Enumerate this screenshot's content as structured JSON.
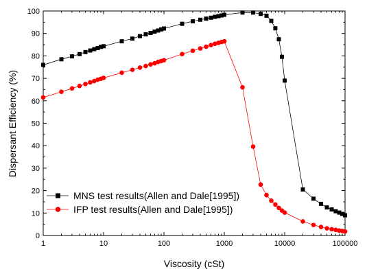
{
  "chart_data": {
    "type": "scatter",
    "title": "",
    "xlabel": "Viscosity (cSt)",
    "ylabel": "Dispersant Efficiency (%)",
    "xscale": "log",
    "xlim": [
      1,
      100000
    ],
    "ylim": [
      0,
      100
    ],
    "x_ticks": [
      1,
      10,
      100,
      1000,
      10000,
      100000
    ],
    "x_tick_labels": [
      "1",
      "10",
      "100",
      "1000",
      "10000",
      "100000"
    ],
    "y_ticks": [
      0,
      10,
      20,
      30,
      40,
      50,
      60,
      70,
      80,
      90,
      100
    ],
    "y_tick_labels": [
      "0",
      "10",
      "20",
      "30",
      "40",
      "50",
      "60",
      "70",
      "80",
      "90",
      "100"
    ],
    "grid": false,
    "legend_position": "bottom-left",
    "series": [
      {
        "name": "MNS test results(Allen and Dale[1995])",
        "color": "#000000",
        "marker": "square",
        "x": [
          1,
          2,
          3,
          4,
          5,
          6,
          7,
          8,
          9,
          10,
          20,
          30,
          40,
          50,
          60,
          70,
          80,
          90,
          100,
          200,
          300,
          400,
          500,
          600,
          700,
          800,
          900,
          1000,
          2000,
          3000,
          4000,
          5000,
          6000,
          7000,
          8000,
          9000,
          10000,
          20000,
          30000,
          40000,
          50000,
          60000,
          70000,
          80000,
          90000,
          100000
        ],
        "y": [
          76,
          78.5,
          79.8,
          80.8,
          81.7,
          82.4,
          83,
          83.5,
          84,
          84.3,
          86.5,
          87.7,
          88.8,
          89.6,
          90.2,
          90.8,
          91.3,
          91.8,
          92.2,
          94.3,
          95.4,
          96.1,
          96.6,
          97,
          97.4,
          97.7,
          98,
          98.3,
          99.3,
          99.3,
          98.7,
          97.9,
          95.6,
          92.3,
          87.4,
          79.6,
          69,
          20.5,
          16.4,
          14.1,
          12.5,
          11.6,
          10.8,
          10.2,
          9.6,
          9
        ]
      },
      {
        "name": "IFP test results(Allen and Dale[1995])",
        "color": "#ff0000",
        "marker": "circle",
        "x": [
          1,
          2,
          3,
          4,
          5,
          6,
          7,
          8,
          9,
          10,
          20,
          30,
          40,
          50,
          60,
          70,
          80,
          90,
          100,
          200,
          300,
          400,
          500,
          600,
          700,
          800,
          900,
          1000,
          2000,
          3000,
          4000,
          5000,
          6000,
          7000,
          8000,
          9000,
          10000,
          20000,
          30000,
          40000,
          50000,
          60000,
          70000,
          80000,
          90000,
          100000
        ],
        "y": [
          61.5,
          64,
          65.5,
          66.6,
          67.5,
          68.2,
          68.8,
          69.4,
          69.8,
          70.2,
          72.5,
          73.8,
          74.8,
          75.5,
          76.2,
          76.7,
          77.3,
          77.7,
          78.1,
          80.8,
          82.3,
          83.3,
          84.1,
          84.8,
          85.4,
          85.8,
          86.2,
          86.5,
          66,
          39.6,
          22.7,
          18,
          15.5,
          13.8,
          12.3,
          11.1,
          10.2,
          6.3,
          4.7,
          3.8,
          3.2,
          2.8,
          2.5,
          2.2,
          2.0,
          1.8
        ]
      }
    ]
  }
}
